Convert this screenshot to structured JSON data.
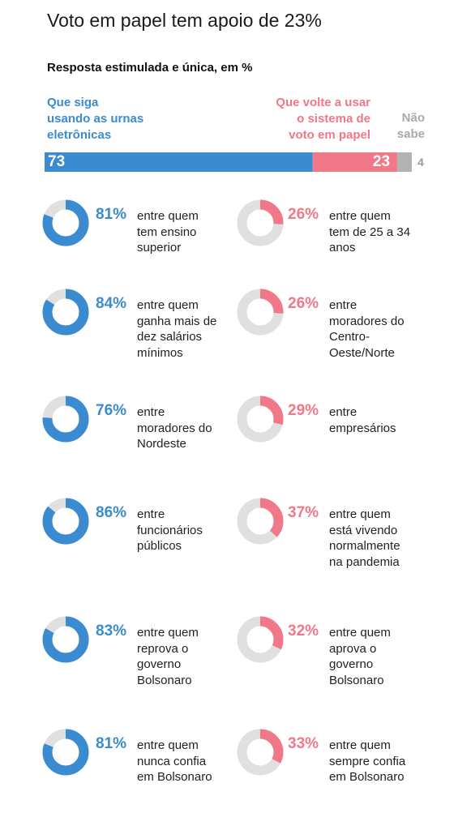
{
  "title": "Voto em papel tem apoio de 23%",
  "subtitle": "Resposta estimulada e única, em %",
  "colors": {
    "blue": "#3a8bd0",
    "pink": "#f07888",
    "gray": "#b3b3b3",
    "track": "#e0e0e0"
  },
  "chart_data": [
    {
      "type": "bar",
      "orientation": "horizontal-stacked",
      "title": "Voto em papel tem apoio de 23%",
      "subtitle": "Resposta estimulada e única, em %",
      "series": [
        {
          "name": "Que siga\nusando as urnas\neletrônicas",
          "value": 73,
          "label": "73"
        },
        {
          "name": "Que volte a usar\no sistema de\nvoto em papel",
          "value": 23,
          "label": "23"
        },
        {
          "name": "Não\nsabe",
          "value": 4,
          "label": "4"
        }
      ]
    },
    {
      "type": "pie",
      "style": "donut",
      "series_name": "Que siga usando as urnas eletrônicas",
      "items": [
        {
          "value": 81,
          "label": "81%",
          "text": "entre quem\ntem ensino\nsuperior"
        },
        {
          "value": 84,
          "label": "84%",
          "text": "entre quem\nganha mais de\ndez salários\nmínimos"
        },
        {
          "value": 76,
          "label": "76%",
          "text": "entre\nmoradores do\nNordeste"
        },
        {
          "value": 86,
          "label": "86%",
          "text": "entre\nfuncionários\npúblicos"
        },
        {
          "value": 83,
          "label": "83%",
          "text": "entre quem\nreprova o\ngoverno\nBolsonaro"
        },
        {
          "value": 81,
          "label": "81%",
          "text": "entre quem\nnunca confia\nem Bolsonaro"
        }
      ]
    },
    {
      "type": "pie",
      "style": "donut",
      "series_name": "Que volte a usar o sistema de voto em papel",
      "items": [
        {
          "value": 26,
          "label": "26%",
          "text": "entre quem\ntem de 25 a 34\nanos"
        },
        {
          "value": 26,
          "label": "26%",
          "text": "entre\nmoradores do\nCentro-\nOeste/Norte"
        },
        {
          "value": 29,
          "label": "29%",
          "text": "entre\nempresários"
        },
        {
          "value": 37,
          "label": "37%",
          "text": "entre quem\nestá vivendo\nnormalmente\nna pandemia"
        },
        {
          "value": 32,
          "label": "32%",
          "text": "entre quem\naprova o\ngoverno\nBolsonaro"
        },
        {
          "value": 33,
          "label": "33%",
          "text": "entre quem\nsempre confia\nem Bolsonaro"
        }
      ]
    }
  ]
}
